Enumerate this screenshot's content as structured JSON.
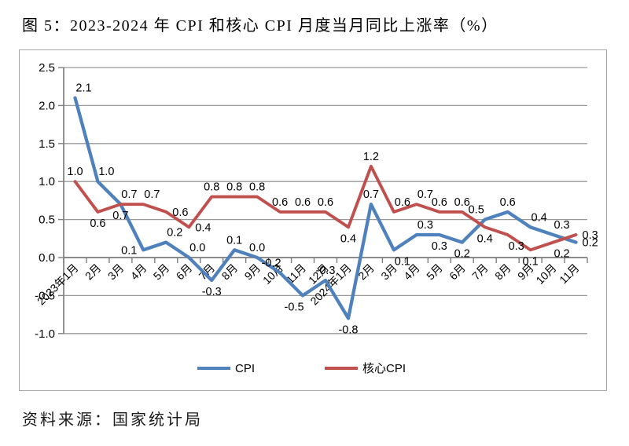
{
  "page": {
    "title": "图 5：2023-2024 年 CPI 和核心 CPI 月度当月同比上涨率（%）",
    "source": "资料来源：国家统计局"
  },
  "chart_data": {
    "type": "line",
    "title": "图 5：2023-2024 年 CPI 和核心 CPI 月度当月同比上涨率（%）",
    "xlabel": "",
    "ylabel": "",
    "ylim": [
      -1.0,
      2.5
    ],
    "ytick_step": 0.5,
    "grid": true,
    "legend_position": "bottom",
    "categories": [
      "2023年1月",
      "2月",
      "3月",
      "4月",
      "5月",
      "6月",
      "7月",
      "8月",
      "9月",
      "10月",
      "11月",
      "12月",
      "2024年1月",
      "2月",
      "3月",
      "4月",
      "5月",
      "6月",
      "7月",
      "8月",
      "9月",
      "10月",
      "11月"
    ],
    "series": [
      {
        "name": "CPI",
        "color": "#4F81BD",
        "values": [
          2.1,
          1.0,
          0.7,
          0.1,
          0.2,
          0.0,
          -0.3,
          0.1,
          0.0,
          -0.2,
          -0.5,
          -0.3,
          -0.8,
          0.7,
          0.1,
          0.3,
          0.3,
          0.2,
          0.5,
          0.6,
          0.4,
          0.3,
          0.2
        ],
        "label_placements": [
          "ar",
          "ar",
          "b",
          "l",
          "ar",
          "ar",
          "b",
          "a",
          "a",
          "al",
          "bl",
          "a",
          "b",
          "a",
          "br",
          "ar",
          "b",
          "b",
          "al",
          "a",
          "ar",
          "ar",
          "r"
        ]
      },
      {
        "name": "核心CPI",
        "color": "#C0504D",
        "values": [
          1.0,
          0.6,
          0.7,
          0.7,
          0.6,
          0.4,
          0.8,
          0.8,
          0.8,
          0.6,
          0.6,
          0.6,
          0.4,
          1.2,
          0.6,
          0.7,
          0.6,
          0.6,
          0.4,
          0.3,
          0.1,
          0.2,
          0.3
        ],
        "label_placements": [
          "a",
          "b",
          "ar",
          "ar",
          "r",
          "r",
          "a",
          "a",
          "a",
          "a",
          "a",
          "a",
          "b",
          "a",
          "ar",
          "ar",
          "a",
          "a",
          "b",
          "br",
          "b",
          "br",
          "r"
        ]
      }
    ],
    "colors": {
      "grid_line": "#9a9a9a",
      "axis_line": "#7f7f7f",
      "data_label": "#000000",
      "frame_border": "#a6a6a6"
    }
  }
}
